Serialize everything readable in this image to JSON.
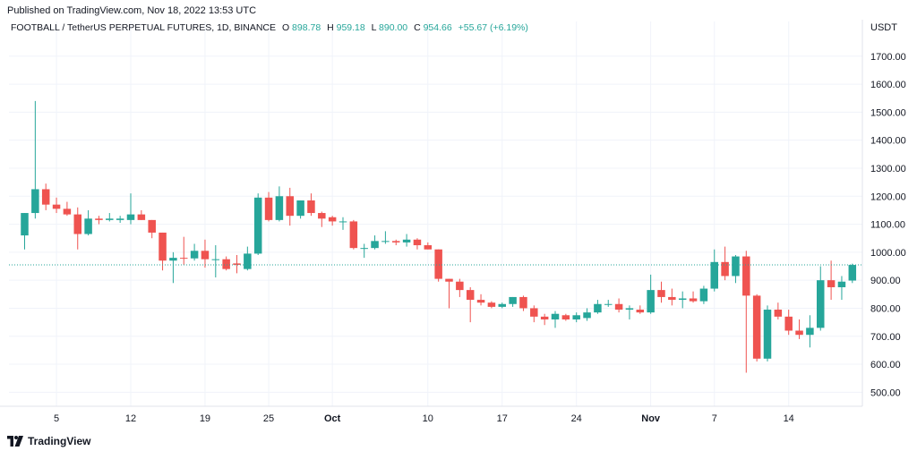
{
  "header": {
    "published": "Published on TradingView.com, Nov 18, 2022 13:53 UTC"
  },
  "legend": {
    "symbol": "FOOTBALL / TetherUS PERPETUAL FUTURES, 1D, BINANCE",
    "o_label": "O",
    "o_value": "898.78",
    "h_label": "H",
    "h_value": "959.18",
    "l_label": "L",
    "l_value": "890.00",
    "c_label": "C",
    "c_value": "954.66",
    "change": "+55.67 (+6.19%)"
  },
  "brand": {
    "name": "TradingView"
  },
  "colors": {
    "up": "#26a69a",
    "down": "#ef5350",
    "grid": "#f0f3fa",
    "priceline": "#26a69a",
    "text": "#131722"
  },
  "chart_data": {
    "type": "candlestick",
    "title": "FOOTBALL / TetherUS PERPETUAL FUTURES, 1D, BINANCE",
    "y_unit": "USDT",
    "ylim": [
      450,
      1760
    ],
    "y_ticks": [
      "1700.00",
      "1600.00",
      "1500.00",
      "1400.00",
      "1300.00",
      "1200.00",
      "1100.00",
      "1000.00",
      "900.00",
      "800.00",
      "700.00",
      "600.00",
      "500.00"
    ],
    "x_ticks": [
      {
        "label": "5",
        "index": 3
      },
      {
        "label": "12",
        "index": 10
      },
      {
        "label": "19",
        "index": 17
      },
      {
        "label": "25",
        "index": 23
      },
      {
        "label": "Oct",
        "index": 29
      },
      {
        "label": "10",
        "index": 38
      },
      {
        "label": "17",
        "index": 45
      },
      {
        "label": "24",
        "index": 52
      },
      {
        "label": "Nov",
        "index": 59
      },
      {
        "label": "7",
        "index": 65
      },
      {
        "label": "14",
        "index": 72
      }
    ],
    "last_price": 954.66,
    "ohlc": [
      {
        "o": 1060,
        "h": 1140,
        "l": 1010,
        "c": 1140
      },
      {
        "o": 1140,
        "h": 1540,
        "l": 1120,
        "c": 1225
      },
      {
        "o": 1225,
        "h": 1245,
        "l": 1150,
        "c": 1170
      },
      {
        "o": 1170,
        "h": 1195,
        "l": 1140,
        "c": 1155
      },
      {
        "o": 1155,
        "h": 1180,
        "l": 1130,
        "c": 1135
      },
      {
        "o": 1135,
        "h": 1160,
        "l": 1010,
        "c": 1065
      },
      {
        "o": 1065,
        "h": 1150,
        "l": 1060,
        "c": 1120
      },
      {
        "o": 1120,
        "h": 1130,
        "l": 1100,
        "c": 1115
      },
      {
        "o": 1115,
        "h": 1140,
        "l": 1110,
        "c": 1120
      },
      {
        "o": 1115,
        "h": 1130,
        "l": 1105,
        "c": 1120
      },
      {
        "o": 1115,
        "h": 1210,
        "l": 1100,
        "c": 1135
      },
      {
        "o": 1135,
        "h": 1150,
        "l": 1115,
        "c": 1115
      },
      {
        "o": 1115,
        "h": 1115,
        "l": 1050,
        "c": 1070
      },
      {
        "o": 1070,
        "h": 1070,
        "l": 935,
        "c": 970
      },
      {
        "o": 970,
        "h": 1000,
        "l": 890,
        "c": 980
      },
      {
        "o": 980,
        "h": 1055,
        "l": 955,
        "c": 978
      },
      {
        "o": 978,
        "h": 1030,
        "l": 970,
        "c": 1005
      },
      {
        "o": 1005,
        "h": 1045,
        "l": 945,
        "c": 975
      },
      {
        "o": 975,
        "h": 1025,
        "l": 910,
        "c": 975
      },
      {
        "o": 975,
        "h": 985,
        "l": 935,
        "c": 940
      },
      {
        "o": 960,
        "h": 990,
        "l": 925,
        "c": 955
      },
      {
        "o": 940,
        "h": 1020,
        "l": 935,
        "c": 995
      },
      {
        "o": 995,
        "h": 1210,
        "l": 990,
        "c": 1195
      },
      {
        "o": 1195,
        "h": 1215,
        "l": 1110,
        "c": 1115
      },
      {
        "o": 1115,
        "h": 1235,
        "l": 1110,
        "c": 1200
      },
      {
        "o": 1200,
        "h": 1230,
        "l": 1095,
        "c": 1130
      },
      {
        "o": 1130,
        "h": 1185,
        "l": 1120,
        "c": 1185
      },
      {
        "o": 1185,
        "h": 1210,
        "l": 1130,
        "c": 1140
      },
      {
        "o": 1140,
        "h": 1145,
        "l": 1090,
        "c": 1120
      },
      {
        "o": 1125,
        "h": 1130,
        "l": 1095,
        "c": 1110
      },
      {
        "o": 1110,
        "h": 1125,
        "l": 1080,
        "c": 1110
      },
      {
        "o": 1110,
        "h": 1115,
        "l": 1010,
        "c": 1015
      },
      {
        "o": 1015,
        "h": 1030,
        "l": 980,
        "c": 1015
      },
      {
        "o": 1015,
        "h": 1060,
        "l": 1010,
        "c": 1040
      },
      {
        "o": 1040,
        "h": 1075,
        "l": 1030,
        "c": 1040
      },
      {
        "o": 1040,
        "h": 1045,
        "l": 1025,
        "c": 1035
      },
      {
        "o": 1035,
        "h": 1065,
        "l": 1020,
        "c": 1045
      },
      {
        "o": 1045,
        "h": 1050,
        "l": 1010,
        "c": 1025
      },
      {
        "o": 1025,
        "h": 1035,
        "l": 1010,
        "c": 1010
      },
      {
        "o": 1010,
        "h": 1010,
        "l": 895,
        "c": 905
      },
      {
        "o": 905,
        "h": 905,
        "l": 800,
        "c": 895
      },
      {
        "o": 895,
        "h": 905,
        "l": 840,
        "c": 865
      },
      {
        "o": 865,
        "h": 875,
        "l": 750,
        "c": 830
      },
      {
        "o": 830,
        "h": 850,
        "l": 810,
        "c": 820
      },
      {
        "o": 820,
        "h": 825,
        "l": 800,
        "c": 805
      },
      {
        "o": 805,
        "h": 820,
        "l": 800,
        "c": 815
      },
      {
        "o": 815,
        "h": 840,
        "l": 805,
        "c": 840
      },
      {
        "o": 840,
        "h": 845,
        "l": 790,
        "c": 800
      },
      {
        "o": 800,
        "h": 810,
        "l": 750,
        "c": 770
      },
      {
        "o": 770,
        "h": 780,
        "l": 740,
        "c": 760
      },
      {
        "o": 760,
        "h": 790,
        "l": 730,
        "c": 780
      },
      {
        "o": 775,
        "h": 780,
        "l": 755,
        "c": 760
      },
      {
        "o": 760,
        "h": 785,
        "l": 750,
        "c": 775
      },
      {
        "o": 765,
        "h": 800,
        "l": 755,
        "c": 785
      },
      {
        "o": 785,
        "h": 830,
        "l": 780,
        "c": 815
      },
      {
        "o": 815,
        "h": 830,
        "l": 805,
        "c": 815
      },
      {
        "o": 815,
        "h": 835,
        "l": 785,
        "c": 795
      },
      {
        "o": 795,
        "h": 810,
        "l": 760,
        "c": 800
      },
      {
        "o": 795,
        "h": 810,
        "l": 780,
        "c": 785
      },
      {
        "o": 785,
        "h": 920,
        "l": 780,
        "c": 865
      },
      {
        "o": 865,
        "h": 895,
        "l": 820,
        "c": 840
      },
      {
        "o": 840,
        "h": 870,
        "l": 810,
        "c": 830
      },
      {
        "o": 830,
        "h": 860,
        "l": 800,
        "c": 835
      },
      {
        "o": 835,
        "h": 860,
        "l": 820,
        "c": 825
      },
      {
        "o": 825,
        "h": 880,
        "l": 815,
        "c": 870
      },
      {
        "o": 870,
        "h": 1010,
        "l": 860,
        "c": 965
      },
      {
        "o": 965,
        "h": 1020,
        "l": 900,
        "c": 915
      },
      {
        "o": 915,
        "h": 990,
        "l": 890,
        "c": 985
      },
      {
        "o": 985,
        "h": 1005,
        "l": 570,
        "c": 845
      },
      {
        "o": 845,
        "h": 850,
        "l": 610,
        "c": 620
      },
      {
        "o": 620,
        "h": 810,
        "l": 610,
        "c": 795
      },
      {
        "o": 795,
        "h": 820,
        "l": 760,
        "c": 770
      },
      {
        "o": 770,
        "h": 795,
        "l": 705,
        "c": 720
      },
      {
        "o": 720,
        "h": 760,
        "l": 690,
        "c": 705
      },
      {
        "o": 705,
        "h": 775,
        "l": 660,
        "c": 730
      },
      {
        "o": 730,
        "h": 950,
        "l": 720,
        "c": 900
      },
      {
        "o": 900,
        "h": 970,
        "l": 830,
        "c": 875
      },
      {
        "o": 875,
        "h": 915,
        "l": 830,
        "c": 895
      },
      {
        "o": 898.78,
        "h": 959.18,
        "l": 890,
        "c": 954.66
      }
    ]
  }
}
